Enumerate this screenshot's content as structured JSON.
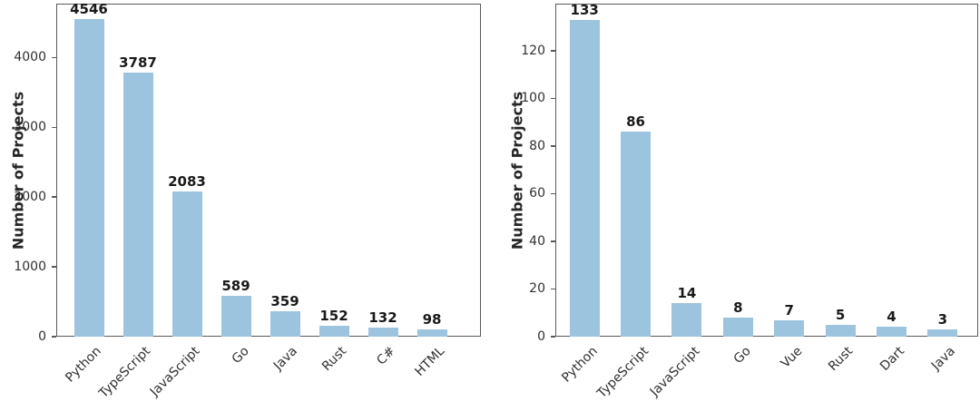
{
  "figure": {
    "background": "#ffffff",
    "bar_color": "#9cc4de",
    "spine_color": "#5a5a5a",
    "tick_label_color": "#303030",
    "value_label_color": "#1a1a1a"
  },
  "chart_data": [
    {
      "type": "bar",
      "title": "",
      "xlabel": "",
      "ylabel": "Number of Projects",
      "categories": [
        "Python",
        "TypeScript",
        "JavaScript",
        "Go",
        "Java",
        "Rust",
        "C#",
        "HTML"
      ],
      "values": [
        4546,
        3787,
        2083,
        589,
        359,
        152,
        132,
        98
      ],
      "value_labels": [
        "4546",
        "3787",
        "2083",
        "589",
        "359",
        "152",
        "132",
        "98"
      ],
      "yticks": [
        0,
        1000,
        2000,
        3000,
        4000
      ],
      "ylim": [
        0,
        4773
      ],
      "grid": false,
      "legend": "none",
      "bar_color": "#9cc4de"
    },
    {
      "type": "bar",
      "title": "",
      "xlabel": "",
      "ylabel": "Number of Projects",
      "categories": [
        "Python",
        "TypeScript",
        "JavaScript",
        "Go",
        "Vue",
        "Rust",
        "Dart",
        "Java"
      ],
      "values": [
        133,
        86,
        14,
        8,
        7,
        5,
        4,
        3
      ],
      "value_labels": [
        "133",
        "86",
        "14",
        "8",
        "7",
        "5",
        "4",
        "3"
      ],
      "yticks": [
        0,
        20,
        40,
        60,
        80,
        100,
        120
      ],
      "ylim": [
        0,
        139.7
      ],
      "grid": false,
      "legend": "none",
      "bar_color": "#9cc4de"
    }
  ]
}
